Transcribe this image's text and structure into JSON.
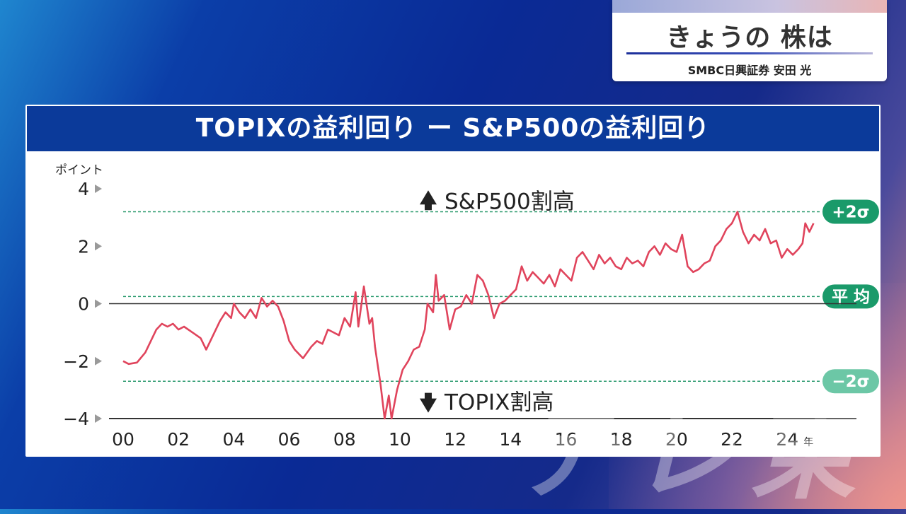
{
  "caption": {
    "title": "きょうの 株は",
    "subtitle": "SMBC日興証券 安田 光"
  },
  "chart_data": {
    "type": "line",
    "title": "TOPIXの益利回り ー S&P500の益利回り",
    "ylabel": "ポイント",
    "x_unit_label": "年",
    "ylim": [
      -4,
      4
    ],
    "xlim": [
      2000,
      2026.5
    ],
    "y_ticks": [
      "4",
      "2",
      "0",
      "−2",
      "−4"
    ],
    "y_tick_values": [
      4,
      2,
      0,
      -2,
      -4
    ],
    "x_ticks": [
      "00",
      "02",
      "04",
      "06",
      "08",
      "10",
      "12",
      "14",
      "16",
      "18",
      "20",
      "22",
      "24"
    ],
    "x_tick_values": [
      2000,
      2002,
      2004,
      2006,
      2008,
      2010,
      2012,
      2014,
      2016,
      2018,
      2020,
      2022,
      2024
    ],
    "upper_annotation": "S&P500割高",
    "lower_annotation": "TOPIX割高",
    "reference_lines": [
      {
        "label": "+2σ",
        "value": 3.2
      },
      {
        "label": "平 均",
        "value": 0.25
      },
      {
        "label": "−2σ",
        "value": -2.7
      }
    ],
    "series": [
      {
        "color": "#e0445c",
        "points": [
          [
            2000.0,
            -2.0
          ],
          [
            2000.2,
            -2.1
          ],
          [
            2000.5,
            -2.05
          ],
          [
            2000.8,
            -1.7
          ],
          [
            2001.0,
            -1.3
          ],
          [
            2001.2,
            -0.9
          ],
          [
            2001.4,
            -0.7
          ],
          [
            2001.6,
            -0.8
          ],
          [
            2001.8,
            -0.7
          ],
          [
            2002.0,
            -0.9
          ],
          [
            2002.2,
            -0.8
          ],
          [
            2002.5,
            -1.0
          ],
          [
            2002.8,
            -1.2
          ],
          [
            2003.0,
            -1.6
          ],
          [
            2003.2,
            -1.2
          ],
          [
            2003.5,
            -0.6
          ],
          [
            2003.7,
            -0.3
          ],
          [
            2003.9,
            -0.5
          ],
          [
            2004.0,
            0.0
          ],
          [
            2004.2,
            -0.3
          ],
          [
            2004.4,
            -0.5
          ],
          [
            2004.6,
            -0.2
          ],
          [
            2004.8,
            -0.5
          ],
          [
            2005.0,
            0.2
          ],
          [
            2005.2,
            -0.1
          ],
          [
            2005.4,
            0.1
          ],
          [
            2005.6,
            -0.1
          ],
          [
            2005.8,
            -0.6
          ],
          [
            2006.0,
            -1.3
          ],
          [
            2006.2,
            -1.6
          ],
          [
            2006.5,
            -1.9
          ],
          [
            2006.8,
            -1.5
          ],
          [
            2007.0,
            -1.3
          ],
          [
            2007.2,
            -1.4
          ],
          [
            2007.4,
            -0.9
          ],
          [
            2007.6,
            -1.0
          ],
          [
            2007.8,
            -1.1
          ],
          [
            2008.0,
            -0.5
          ],
          [
            2008.2,
            -0.8
          ],
          [
            2008.4,
            0.4
          ],
          [
            2008.5,
            -0.8
          ],
          [
            2008.7,
            0.6
          ],
          [
            2008.9,
            -0.7
          ],
          [
            2009.0,
            -0.5
          ],
          [
            2009.1,
            -1.5
          ],
          [
            2009.3,
            -2.8
          ],
          [
            2009.45,
            -4.0
          ],
          [
            2009.6,
            -3.2
          ],
          [
            2009.7,
            -4.0
          ],
          [
            2009.9,
            -3.0
          ],
          [
            2010.1,
            -2.3
          ],
          [
            2010.3,
            -2.0
          ],
          [
            2010.5,
            -1.6
          ],
          [
            2010.7,
            -1.5
          ],
          [
            2010.9,
            -0.9
          ],
          [
            2011.0,
            0.0
          ],
          [
            2011.2,
            -0.3
          ],
          [
            2011.3,
            1.0
          ],
          [
            2011.4,
            0.1
          ],
          [
            2011.6,
            0.3
          ],
          [
            2011.8,
            -0.9
          ],
          [
            2012.0,
            -0.2
          ],
          [
            2012.2,
            -0.1
          ],
          [
            2012.4,
            0.3
          ],
          [
            2012.6,
            0.0
          ],
          [
            2012.8,
            1.0
          ],
          [
            2013.0,
            0.8
          ],
          [
            2013.2,
            0.3
          ],
          [
            2013.4,
            -0.5
          ],
          [
            2013.6,
            0.0
          ],
          [
            2013.8,
            0.1
          ],
          [
            2014.0,
            0.3
          ],
          [
            2014.2,
            0.5
          ],
          [
            2014.4,
            1.3
          ],
          [
            2014.6,
            0.8
          ],
          [
            2014.8,
            1.1
          ],
          [
            2015.0,
            0.9
          ],
          [
            2015.2,
            0.7
          ],
          [
            2015.4,
            1.0
          ],
          [
            2015.6,
            0.6
          ],
          [
            2015.8,
            1.2
          ],
          [
            2016.0,
            1.0
          ],
          [
            2016.2,
            0.8
          ],
          [
            2016.4,
            1.6
          ],
          [
            2016.6,
            1.8
          ],
          [
            2016.8,
            1.5
          ],
          [
            2017.0,
            1.2
          ],
          [
            2017.2,
            1.7
          ],
          [
            2017.4,
            1.4
          ],
          [
            2017.6,
            1.6
          ],
          [
            2017.8,
            1.3
          ],
          [
            2018.0,
            1.2
          ],
          [
            2018.2,
            1.6
          ],
          [
            2018.4,
            1.4
          ],
          [
            2018.6,
            1.5
          ],
          [
            2018.8,
            1.3
          ],
          [
            2019.0,
            1.8
          ],
          [
            2019.2,
            2.0
          ],
          [
            2019.4,
            1.7
          ],
          [
            2019.6,
            2.1
          ],
          [
            2019.8,
            1.9
          ],
          [
            2020.0,
            1.8
          ],
          [
            2020.2,
            2.4
          ],
          [
            2020.4,
            1.3
          ],
          [
            2020.6,
            1.1
          ],
          [
            2020.8,
            1.2
          ],
          [
            2021.0,
            1.4
          ],
          [
            2021.2,
            1.5
          ],
          [
            2021.4,
            2.0
          ],
          [
            2021.6,
            2.2
          ],
          [
            2021.8,
            2.6
          ],
          [
            2022.0,
            2.8
          ],
          [
            2022.2,
            3.2
          ],
          [
            2022.4,
            2.5
          ],
          [
            2022.6,
            2.1
          ],
          [
            2022.8,
            2.4
          ],
          [
            2023.0,
            2.2
          ],
          [
            2023.2,
            2.6
          ],
          [
            2023.4,
            2.1
          ],
          [
            2023.6,
            2.2
          ],
          [
            2023.8,
            1.6
          ],
          [
            2024.0,
            1.9
          ],
          [
            2024.2,
            1.7
          ],
          [
            2024.4,
            1.9
          ],
          [
            2024.55,
            2.1
          ],
          [
            2024.65,
            2.8
          ],
          [
            2024.8,
            2.5
          ],
          [
            2024.95,
            2.8
          ]
        ]
      }
    ]
  },
  "watermark": "テレ東"
}
